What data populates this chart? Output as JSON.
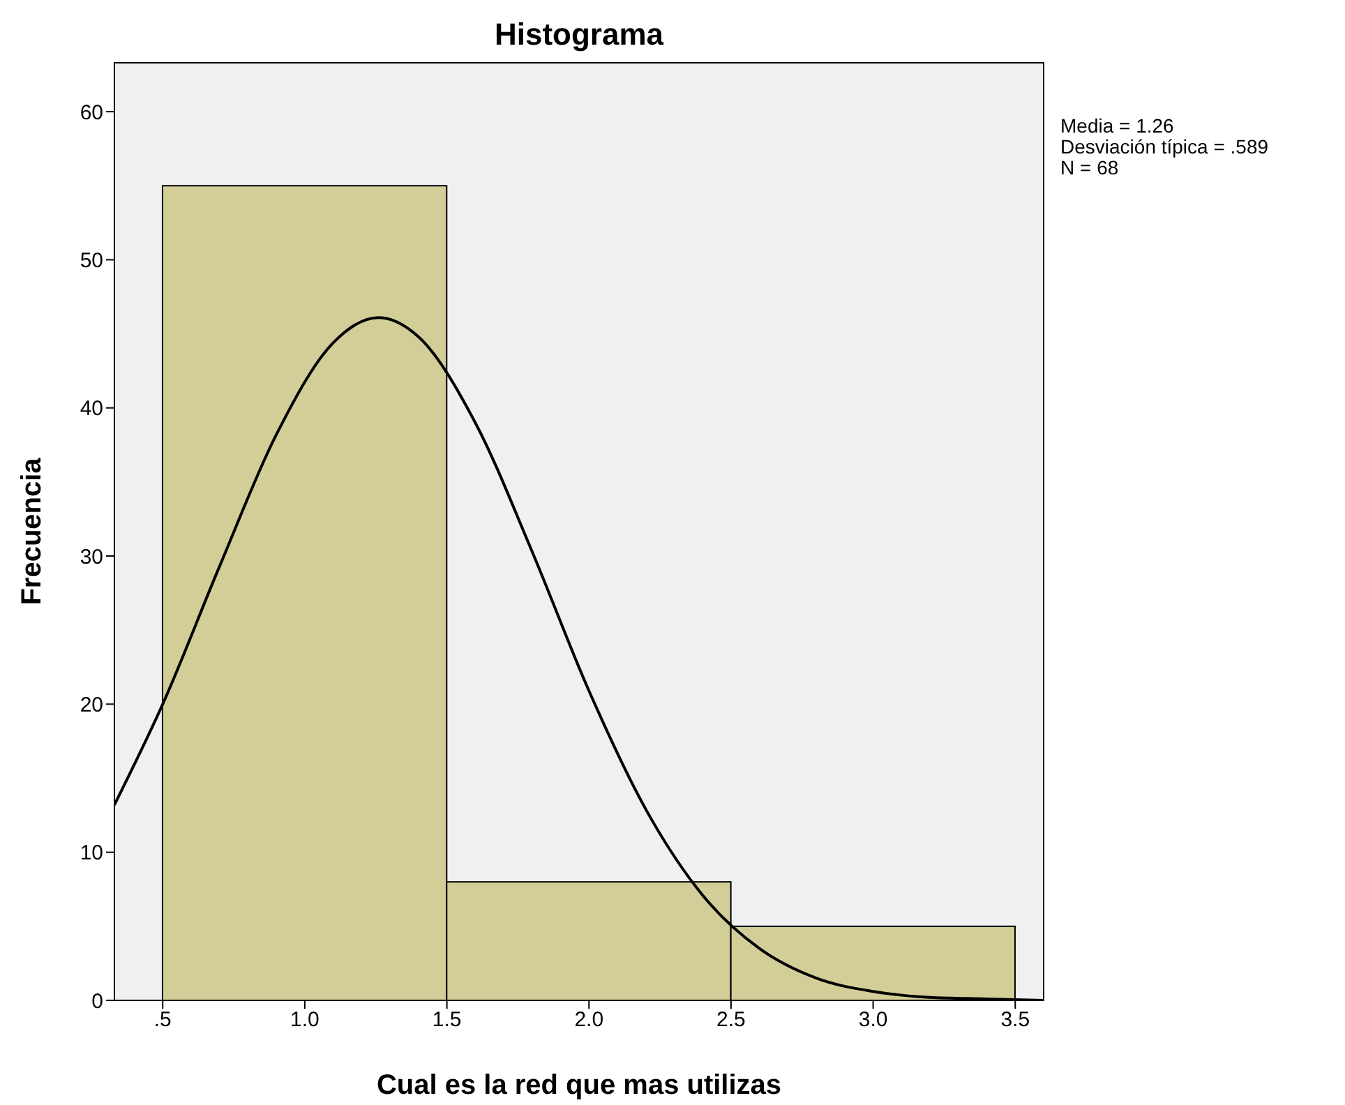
{
  "chart_data": {
    "type": "histogram",
    "title": "Histograma",
    "xlabel": "Cual es la red que mas utilizas",
    "ylabel": "Frecuencia",
    "bins": [
      0.5,
      1.5,
      2.5,
      3.5
    ],
    "values": [
      55,
      8,
      5
    ],
    "color": "#d3ce98",
    "series": [
      {
        "type": "line",
        "color": "#000000",
        "x": [
          0.33,
          0.5,
          0.7,
          0.9,
          1.1,
          1.26,
          1.4,
          1.6,
          1.8,
          2.0,
          2.2,
          2.4,
          2.6,
          2.8,
          3.0,
          3.2,
          3.4,
          3.6
        ],
        "values": [
          13.2,
          20.0,
          29.3,
          38.2,
          44.4,
          46.1,
          44.8,
          39.0,
          30.3,
          20.9,
          12.9,
          7.1,
          3.5,
          1.5,
          0.6,
          0.2,
          0.1,
          0.0
        ]
      }
    ],
    "xlim": [
      0.33,
      3.6
    ],
    "xticks": [
      {
        "value": 0.5,
        "label": ".5"
      },
      {
        "value": 1,
        "label": "1.0"
      },
      {
        "value": 1.5,
        "label": "1.5"
      },
      {
        "value": 2,
        "label": "2.0"
      },
      {
        "value": 2.5,
        "label": "2.5"
      },
      {
        "value": 3,
        "label": "3.0"
      },
      {
        "value": 3.5,
        "label": "3.5"
      }
    ],
    "ylim": [
      0,
      63.3
    ],
    "yticks": [
      0,
      10,
      20,
      30,
      40,
      50,
      60
    ],
    "annotations": [
      "Media = 1.26",
      "Desviación típica = .589",
      "N = 68"
    ]
  }
}
